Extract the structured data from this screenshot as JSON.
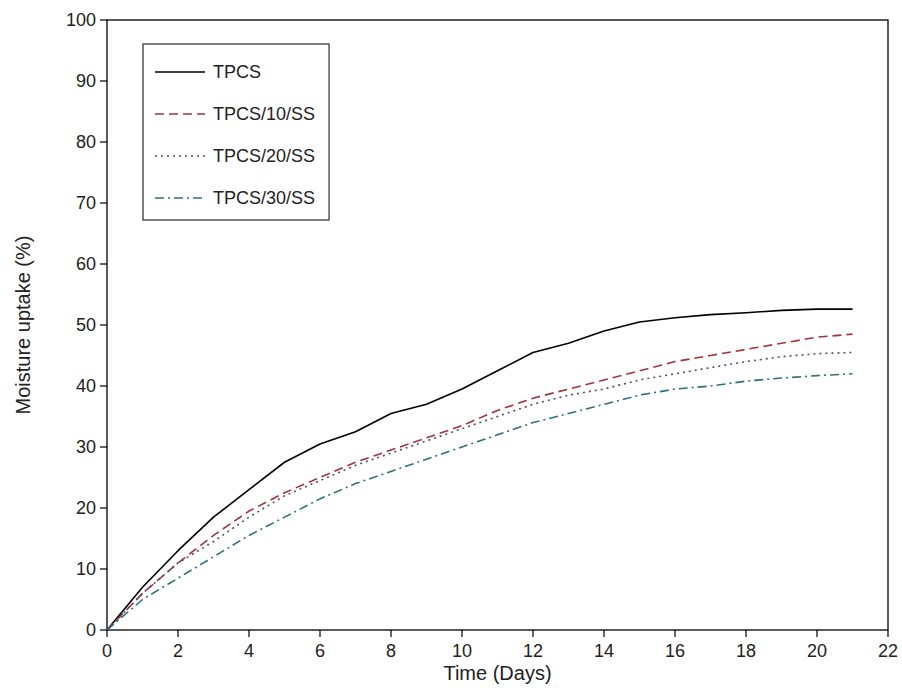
{
  "chart_data": {
    "type": "line",
    "x_label": "Time (Days)",
    "y_label": "Moisture uptake (%)",
    "x": [
      0,
      1,
      2,
      3,
      4,
      5,
      6,
      7,
      8,
      9,
      10,
      11,
      12,
      13,
      14,
      15,
      16,
      17,
      18,
      19,
      20,
      21
    ],
    "xlim": [
      0,
      22
    ],
    "xticks": [
      0,
      2,
      4,
      6,
      8,
      10,
      12,
      14,
      16,
      18,
      20,
      22
    ],
    "ylim": [
      0,
      100
    ],
    "yticks": [
      0,
      10,
      20,
      30,
      40,
      50,
      60,
      70,
      80,
      90,
      100
    ],
    "grid": false,
    "legend": "top-left",
    "series": [
      {
        "name": "TPCS",
        "color": "#000000",
        "line_style": "solid",
        "values": [
          0,
          7,
          13,
          18.5,
          23,
          27.5,
          30.5,
          32.5,
          35.5,
          37,
          39.5,
          42.5,
          45.5,
          47,
          49,
          50.5,
          51.2,
          51.7,
          52,
          52.4,
          52.6,
          52.6
        ]
      },
      {
        "name": "TPCS/10/SS",
        "color": "#a0343a",
        "line_style": "dashed",
        "values": [
          0,
          6,
          11,
          15.5,
          19.5,
          22.5,
          25,
          27.5,
          29.5,
          31.5,
          33.5,
          36,
          38,
          39.5,
          41,
          42.5,
          44,
          45,
          46,
          47,
          48,
          48.5
        ]
      },
      {
        "name": "TPCS/20/SS",
        "color": "#5a4a6e",
        "line_style": "dotted",
        "values": [
          0,
          6,
          11,
          14.5,
          18.5,
          22,
          24.5,
          27,
          29,
          31,
          33,
          35,
          37,
          38.5,
          39.5,
          41,
          42,
          43,
          44,
          44.8,
          45.3,
          45.5
        ]
      },
      {
        "name": "TPCS/30/SS",
        "color": "#2f6f7f",
        "line_style": "dashdot",
        "values": [
          0,
          5,
          8.5,
          12,
          15.5,
          18.5,
          21.5,
          24,
          26,
          28,
          30,
          32,
          34,
          35.5,
          37,
          38.5,
          39.5,
          40,
          40.8,
          41.3,
          41.7,
          42
        ]
      }
    ]
  }
}
